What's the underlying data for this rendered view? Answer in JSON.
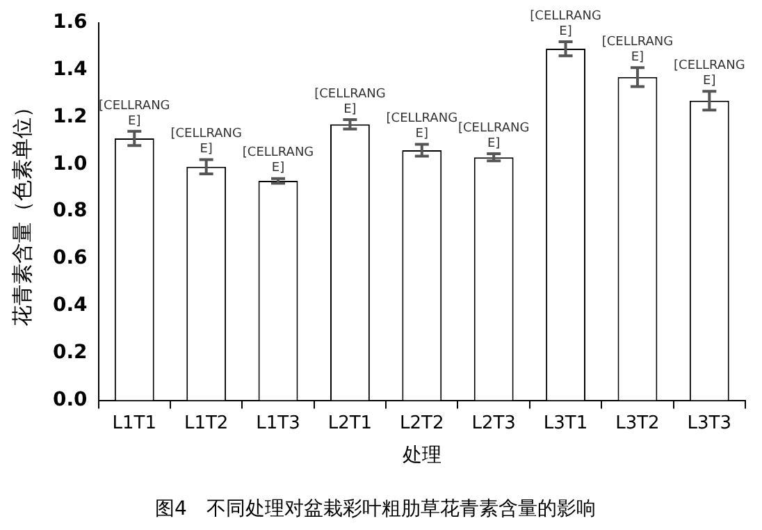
{
  "chart_data": {
    "type": "bar",
    "title": "图4　不同处理对盆栽彩叶粗肋草花青素含量的影响",
    "xlabel": "处理",
    "ylabel": "花青素含量（色素单位）",
    "categories": [
      "L1T1",
      "L1T2",
      "L1T3",
      "L2T1",
      "L2T2",
      "L2T3",
      "L3T1",
      "L3T2",
      "L3T3"
    ],
    "values": [
      1.11,
      0.99,
      0.93,
      1.17,
      1.06,
      1.03,
      1.49,
      1.37,
      1.27
    ],
    "errors": [
      0.03,
      0.03,
      0.01,
      0.02,
      0.025,
      0.015,
      0.03,
      0.04,
      0.04
    ],
    "value_labels": [
      "[CELLRANGE]",
      "[CELLRANGE]",
      "[CELLRANGE]",
      "[CELLRANGE]",
      "[CELLRANGE]",
      "[CELLRANGE]",
      "[CELLRANGE]",
      "[CELLRANGE]",
      "[CELLRANGE]"
    ],
    "color": "#ffffff",
    "ylim": [
      0,
      1.6
    ],
    "yticks": [
      {
        "value": 0,
        "label": "0.0"
      },
      0.2,
      0.4,
      0.6,
      0.8,
      {
        "value": 1,
        "label": "1.0"
      },
      1.2,
      1.4,
      1.6
    ],
    "grid": false,
    "legend": false
  }
}
